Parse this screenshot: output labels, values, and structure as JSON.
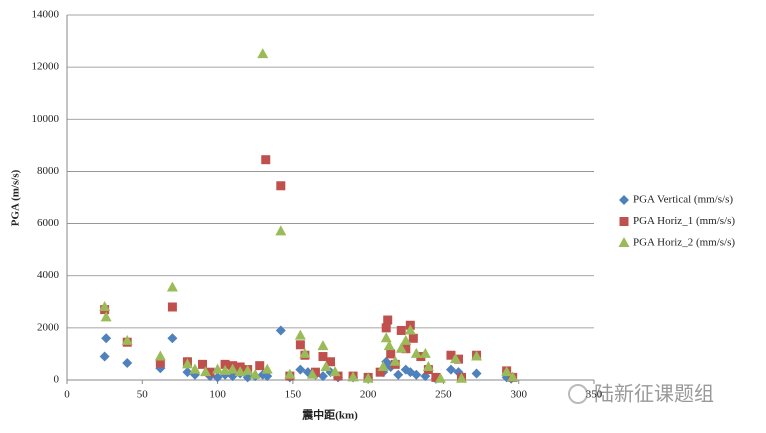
{
  "chart_data": {
    "type": "scatter",
    "y_label": "PGA (m/s/s)",
    "x_label": "震中距(km)",
    "watermark": "陆新征课题组",
    "xlim": [
      0,
      350
    ],
    "xticks": [
      0,
      50,
      100,
      150,
      200,
      250,
      300,
      350
    ],
    "ylim": [
      0,
      14000
    ],
    "yticks": [
      0,
      2000,
      4000,
      6000,
      8000,
      10000,
      12000,
      14000
    ],
    "grid": true,
    "legend": "right",
    "series": [
      {
        "name": "PGA Vertical (mm/s/s)",
        "color": "#4f81bd",
        "marker": "diamond",
        "x": [
          25,
          26,
          40,
          62,
          70,
          80,
          85,
          95,
          100,
          105,
          110,
          115,
          120,
          125,
          130,
          133,
          142,
          148,
          155,
          160,
          165,
          170,
          175,
          180,
          190,
          200,
          210,
          212,
          215,
          220,
          225,
          228,
          232,
          238,
          245,
          255,
          260,
          272,
          292,
          295
        ],
        "values": [
          900,
          1600,
          650,
          450,
          1600,
          300,
          200,
          150,
          100,
          200,
          150,
          250,
          100,
          150,
          200,
          150,
          1900,
          100,
          400,
          300,
          200,
          150,
          300,
          100,
          100,
          100,
          300,
          700,
          500,
          200,
          400,
          300,
          200,
          150,
          50,
          400,
          300,
          250,
          100,
          50
        ]
      },
      {
        "name": "PGA Horiz_1 (mm/s/s)",
        "color": "#c0504d",
        "marker": "square",
        "x": [
          25,
          40,
          62,
          70,
          80,
          90,
          95,
          105,
          110,
          115,
          120,
          128,
          132,
          142,
          148,
          155,
          158,
          165,
          170,
          175,
          180,
          190,
          200,
          208,
          212,
          213,
          215,
          218,
          222,
          225,
          228,
          230,
          235,
          240,
          245,
          255,
          260,
          262,
          272,
          292,
          296
        ],
        "values": [
          2700,
          1450,
          650,
          2800,
          700,
          600,
          300,
          600,
          550,
          500,
          400,
          550,
          8450,
          7450,
          150,
          1350,
          950,
          300,
          900,
          700,
          150,
          150,
          100,
          300,
          2000,
          2300,
          1000,
          600,
          1900,
          1200,
          2100,
          1600,
          900,
          400,
          100,
          950,
          800,
          100,
          950,
          350,
          100
        ]
      },
      {
        "name": "PGA Horiz_2 (mm/s/s)",
        "color": "#9bbb59",
        "marker": "triangle",
        "x": [
          25,
          26,
          40,
          62,
          70,
          80,
          85,
          92,
          100,
          105,
          110,
          115,
          120,
          125,
          130,
          133,
          142,
          148,
          155,
          158,
          163,
          170,
          172,
          178,
          190,
          200,
          210,
          212,
          214,
          218,
          222,
          225,
          228,
          232,
          238,
          240,
          248,
          258,
          262,
          272,
          292,
          296
        ],
        "values": [
          2800,
          2400,
          1500,
          900,
          3550,
          600,
          400,
          300,
          400,
          350,
          400,
          300,
          350,
          200,
          12500,
          400,
          5700,
          200,
          1700,
          1000,
          200,
          1300,
          500,
          300,
          100,
          50,
          500,
          1600,
          1300,
          700,
          1200,
          1500,
          1900,
          1000,
          1000,
          500,
          50,
          800,
          50,
          900,
          300,
          100
        ]
      }
    ]
  }
}
